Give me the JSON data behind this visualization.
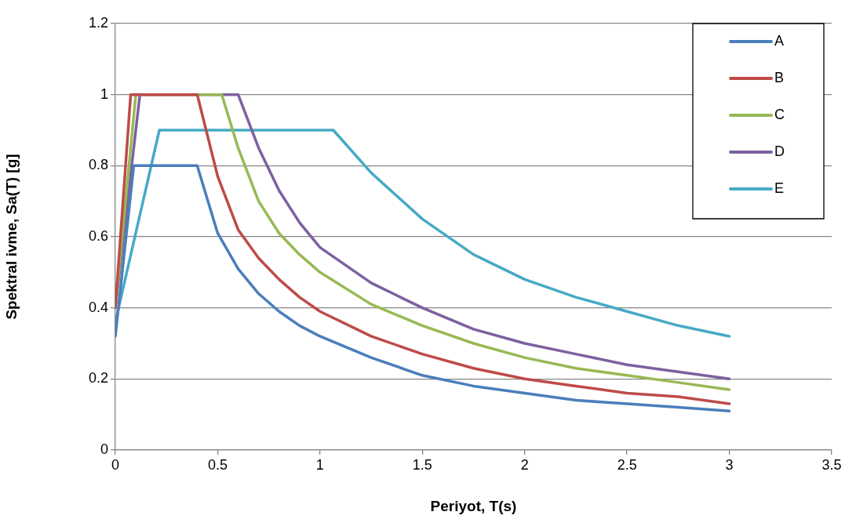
{
  "chart_data": {
    "type": "line",
    "xlabel": "Periyot, T(s)",
    "ylabel": "Spektral ivme, Sa(T) [g]",
    "xlim": [
      0,
      3.5
    ],
    "xticks": [
      0,
      0.5,
      1,
      1.5,
      2,
      2.5,
      3,
      3.5
    ],
    "ylim": [
      0,
      1.2
    ],
    "yticks": [
      0,
      0.2,
      0.4,
      0.6,
      0.8,
      1,
      1.2
    ],
    "grid": "y",
    "legend": "top right",
    "marker": "none",
    "line_style": "solid",
    "series": [
      {
        "name": "A",
        "color": "#4a7ebb",
        "x": [
          0,
          0.09,
          0.4,
          0.5,
          0.6,
          0.7,
          0.8,
          0.9,
          1,
          1.25,
          1.5,
          1.75,
          2,
          2.25,
          2.5,
          2.75,
          3
        ],
        "values": [
          0.32,
          0.8,
          0.8,
          0.61,
          0.51,
          0.44,
          0.39,
          0.35,
          0.32,
          0.26,
          0.21,
          0.18,
          0.16,
          0.14,
          0.13,
          0.12,
          0.11
        ]
      },
      {
        "name": "B",
        "color": "#be4b48",
        "x": [
          0,
          0.075,
          0.4,
          0.5,
          0.6,
          0.7,
          0.8,
          0.9,
          1,
          1.25,
          1.5,
          1.75,
          2,
          2.25,
          2.5,
          2.75,
          3
        ],
        "values": [
          0.4,
          1,
          1,
          0.77,
          0.62,
          0.54,
          0.48,
          0.43,
          0.39,
          0.32,
          0.27,
          0.23,
          0.2,
          0.18,
          0.16,
          0.15,
          0.13
        ]
      },
      {
        "name": "C",
        "color": "#98b954",
        "x": [
          0,
          0.1,
          0.52,
          0.6,
          0.7,
          0.8,
          0.9,
          1,
          1.25,
          1.5,
          1.75,
          2,
          2.25,
          2.5,
          2.75,
          3
        ],
        "values": [
          0.4,
          1,
          1,
          0.85,
          0.7,
          0.61,
          0.55,
          0.5,
          0.41,
          0.35,
          0.3,
          0.26,
          0.23,
          0.21,
          0.19,
          0.17
        ]
      },
      {
        "name": "D",
        "color": "#7d60a0",
        "x": [
          0,
          0.12,
          0.6,
          0.7,
          0.8,
          0.9,
          1,
          1.25,
          1.5,
          1.75,
          2,
          2.25,
          2.5,
          2.75,
          3
        ],
        "values": [
          0.4,
          1,
          1,
          0.85,
          0.73,
          0.64,
          0.57,
          0.47,
          0.4,
          0.34,
          0.3,
          0.27,
          0.24,
          0.22,
          0.2
        ]
      },
      {
        "name": "E",
        "color": "#46aac5",
        "x": [
          0,
          0.215,
          1.065,
          1.25,
          1.5,
          1.75,
          2,
          2.25,
          2.5,
          2.75,
          3
        ],
        "values": [
          0.36,
          0.9,
          0.9,
          0.78,
          0.65,
          0.55,
          0.48,
          0.43,
          0.39,
          0.35,
          0.32
        ]
      }
    ]
  }
}
